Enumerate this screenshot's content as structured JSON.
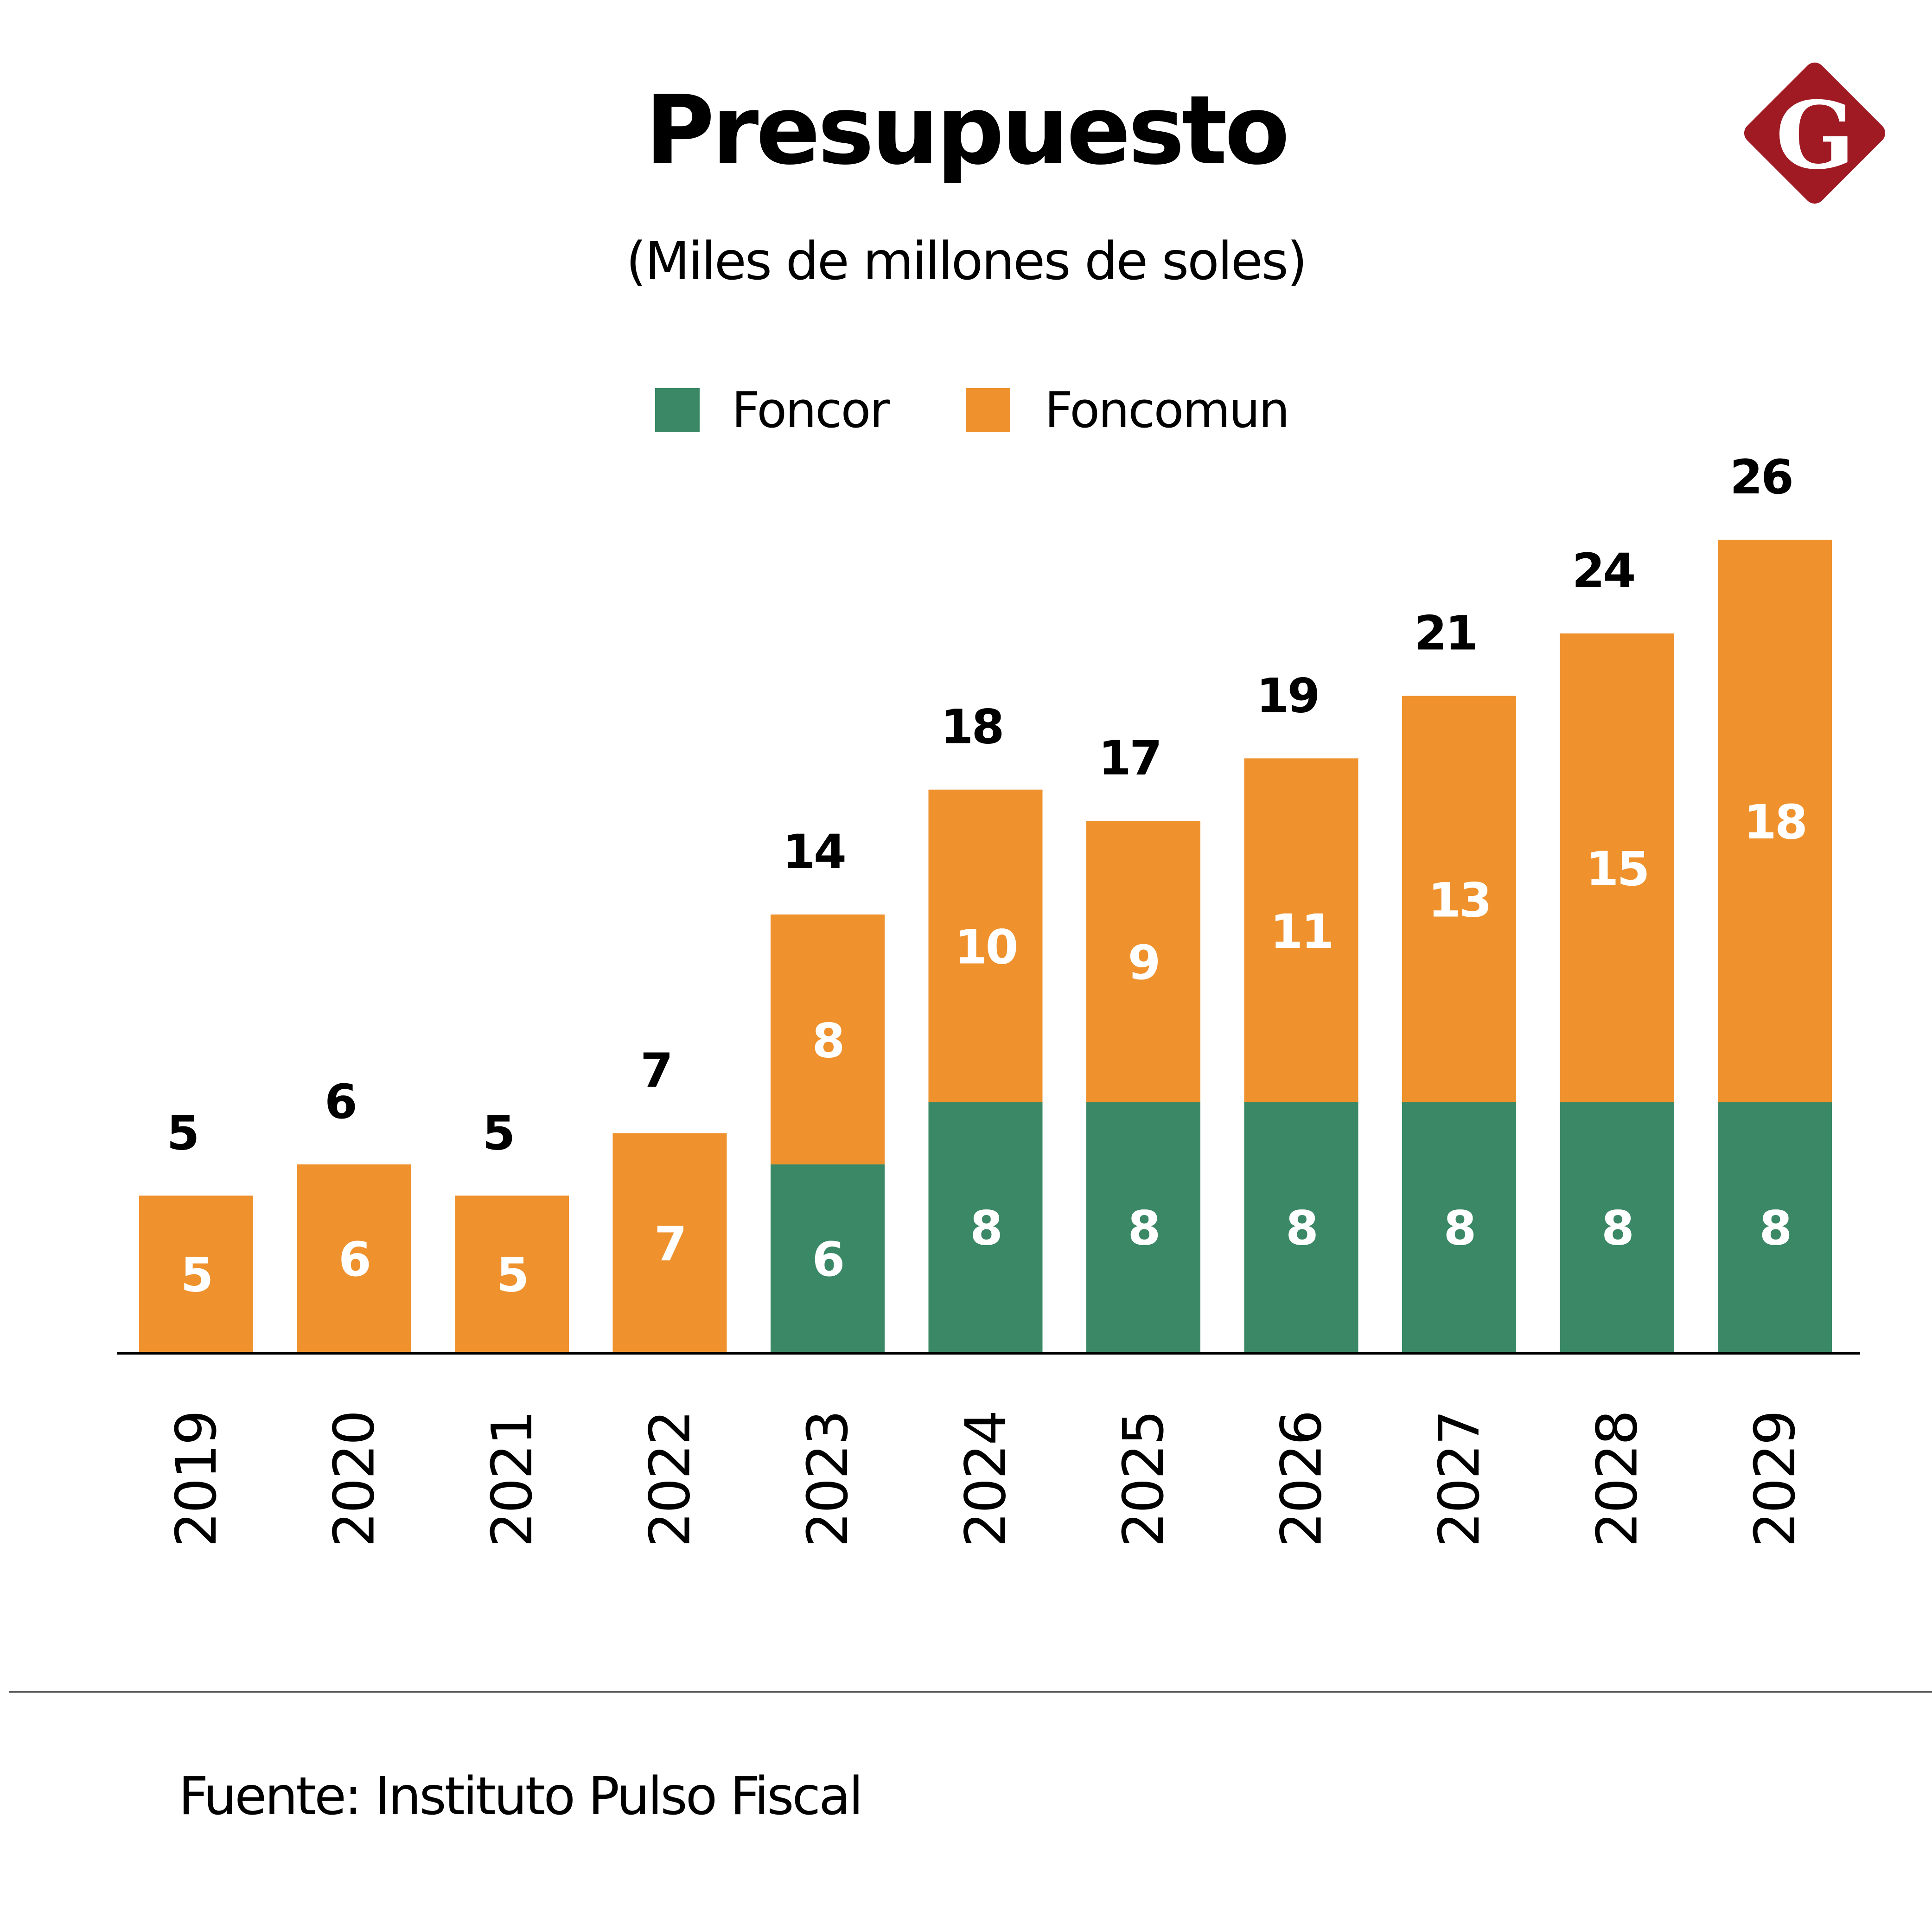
{
  "header": {
    "title": "Presupuesto",
    "subtitle": "(Miles de millones de soles)",
    "logo_letter": "G",
    "logo_icon": "diamond-g-logo-icon"
  },
  "legend": [
    {
      "label": "Foncor",
      "color": "#3a8866"
    },
    {
      "label": "Foncomun",
      "color": "#ef922d"
    }
  ],
  "footer": {
    "source": "Fuente: Instituto Pulso Fiscal"
  },
  "colors": {
    "foncor": "#3a8866",
    "foncomun": "#ef922d",
    "logo": "#a01a24",
    "axis": "#000000"
  },
  "chart_data": {
    "type": "bar",
    "stacked": true,
    "title": "Presupuesto",
    "subtitle": "(Miles de millones de soles)",
    "xlabel": "",
    "ylabel": "",
    "ylim": [
      0,
      26
    ],
    "grid": false,
    "legend_position": "top-center",
    "categories": [
      "2019",
      "2020",
      "2021",
      "2022",
      "2023",
      "2024",
      "2025",
      "2026",
      "2027",
      "2028",
      "2029"
    ],
    "series": [
      {
        "name": "Foncor",
        "color": "#3a8866",
        "values": [
          0,
          0,
          0,
          0,
          6,
          8,
          8,
          8,
          8,
          8,
          8
        ]
      },
      {
        "name": "Foncomun",
        "color": "#ef922d",
        "values": [
          5,
          6,
          5,
          7,
          8,
          10,
          9,
          11,
          13,
          15,
          18
        ]
      }
    ],
    "totals": [
      5,
      6,
      5,
      7,
      14,
      18,
      17,
      19,
      21,
      24,
      26
    ],
    "source": "Fuente: Instituto Pulso Fiscal"
  }
}
